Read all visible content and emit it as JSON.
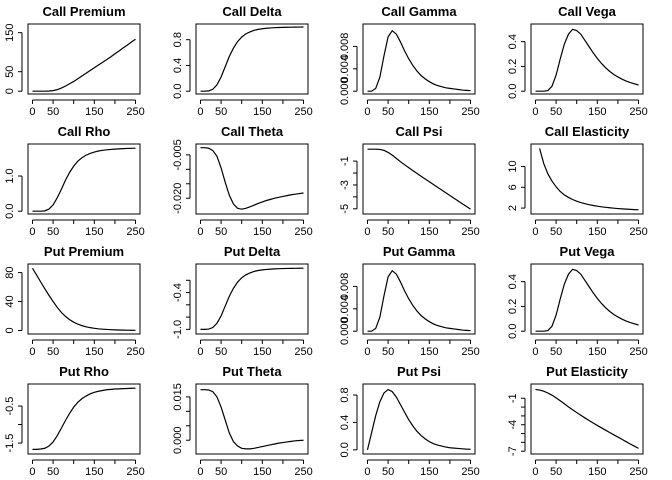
{
  "chart_data": [
    {
      "type": "line",
      "title": "Call Premium",
      "x": [
        0,
        10,
        20,
        30,
        40,
        50,
        60,
        70,
        80,
        90,
        100,
        110,
        120,
        130,
        140,
        150,
        160,
        170,
        180,
        190,
        200,
        210,
        220,
        230,
        240,
        250
      ],
      "y": [
        0,
        0,
        0,
        0,
        0.5,
        1.5,
        4,
        8,
        13,
        19,
        25,
        32,
        39,
        46,
        53,
        60,
        67,
        74,
        81,
        88,
        96,
        103,
        111,
        118,
        126,
        133
      ],
      "xlim": [
        0,
        250
      ],
      "ylim": [
        0,
        165
      ],
      "xticks": [
        0,
        50,
        150,
        250
      ],
      "xticklabels": [
        "0",
        "50",
        "150",
        "250"
      ],
      "yticks": [
        0,
        50,
        150
      ],
      "yticklabels": [
        "0",
        "50",
        "150"
      ]
    },
    {
      "type": "line",
      "title": "Call Delta",
      "x": [
        0,
        10,
        20,
        30,
        40,
        50,
        60,
        70,
        80,
        90,
        100,
        110,
        120,
        130,
        140,
        150,
        160,
        170,
        180,
        190,
        200,
        210,
        220,
        230,
        240,
        250
      ],
      "y": [
        0,
        0,
        0.005,
        0.03,
        0.1,
        0.22,
        0.38,
        0.54,
        0.67,
        0.77,
        0.84,
        0.89,
        0.92,
        0.945,
        0.96,
        0.97,
        0.977,
        0.982,
        0.986,
        0.989,
        0.991,
        0.993,
        0.994,
        0.995,
        0.996,
        0.997
      ],
      "xlim": [
        0,
        250
      ],
      "ylim": [
        0,
        1
      ],
      "xticks": [
        0,
        50,
        150,
        250
      ],
      "xticklabels": [
        "0",
        "50",
        "150",
        "250"
      ],
      "yticks": [
        0,
        0.4,
        0.8
      ],
      "yticklabels": [
        "0.0",
        "0.4",
        "0.8"
      ]
    },
    {
      "type": "line",
      "title": "Call Gamma",
      "x": [
        0,
        10,
        20,
        30,
        40,
        50,
        60,
        70,
        80,
        90,
        100,
        110,
        120,
        130,
        140,
        150,
        160,
        170,
        180,
        190,
        200,
        210,
        220,
        230,
        240,
        250
      ],
      "y": [
        0,
        0,
        0.0005,
        0.0025,
        0.0063,
        0.0097,
        0.0108,
        0.0102,
        0.0088,
        0.0072,
        0.0058,
        0.0046,
        0.0036,
        0.0028,
        0.0022,
        0.0017,
        0.0013,
        0.001,
        0.0008,
        0.0006,
        0.0005,
        0.0004,
        0.0003,
        0.0002,
        0.00015,
        0.0001
      ],
      "xlim": [
        0,
        250
      ],
      "ylim": [
        0,
        0.0115
      ],
      "xticks": [
        0,
        50,
        150,
        250
      ],
      "xticklabels": [
        "0",
        "50",
        "150",
        "250"
      ],
      "yticks": [
        0,
        0.004,
        0.008
      ],
      "yticklabels": [
        "0.000",
        "0.004",
        "0.008"
      ]
    },
    {
      "type": "line",
      "title": "Call Vega",
      "x": [
        0,
        10,
        20,
        30,
        40,
        50,
        60,
        70,
        80,
        90,
        100,
        110,
        120,
        130,
        140,
        150,
        160,
        170,
        180,
        190,
        200,
        210,
        220,
        230,
        240,
        250
      ],
      "y": [
        0,
        0,
        0,
        0.005,
        0.04,
        0.13,
        0.26,
        0.38,
        0.46,
        0.5,
        0.49,
        0.46,
        0.41,
        0.36,
        0.31,
        0.265,
        0.225,
        0.19,
        0.16,
        0.135,
        0.115,
        0.097,
        0.082,
        0.07,
        0.06,
        0.05
      ],
      "xlim": [
        0,
        250
      ],
      "ylim": [
        0,
        0.52
      ],
      "xticks": [
        0,
        50,
        150,
        250
      ],
      "xticklabels": [
        "0",
        "50",
        "150",
        "250"
      ],
      "yticks": [
        0,
        0.2,
        0.4
      ],
      "yticklabels": [
        "0.0",
        "0.2",
        "0.4"
      ]
    },
    {
      "type": "line",
      "title": "Call Rho",
      "x": [
        0,
        10,
        20,
        30,
        40,
        50,
        60,
        70,
        80,
        90,
        100,
        110,
        120,
        130,
        140,
        150,
        160,
        170,
        180,
        190,
        200,
        210,
        220,
        230,
        240,
        250
      ],
      "y": [
        0,
        0,
        0,
        0.01,
        0.06,
        0.18,
        0.38,
        0.62,
        0.88,
        1.1,
        1.28,
        1.42,
        1.52,
        1.59,
        1.64,
        1.68,
        1.71,
        1.73,
        1.745,
        1.755,
        1.765,
        1.772,
        1.778,
        1.783,
        1.787,
        1.79
      ],
      "xlim": [
        0,
        250
      ],
      "ylim": [
        0,
        1.83
      ],
      "xticks": [
        0,
        50,
        150,
        250
      ],
      "xticklabels": [
        "0",
        "50",
        "150",
        "250"
      ],
      "yticks": [
        0,
        1.0
      ],
      "yticklabels": [
        "0.0",
        "1.0"
      ]
    },
    {
      "type": "line",
      "title": "Call Theta",
      "x": [
        0,
        10,
        20,
        30,
        40,
        50,
        60,
        70,
        80,
        90,
        100,
        110,
        120,
        130,
        140,
        150,
        160,
        170,
        180,
        190,
        200,
        210,
        220,
        230,
        240,
        250
      ],
      "y": [
        -0.0025,
        -0.0025,
        -0.0027,
        -0.0035,
        -0.0055,
        -0.0095,
        -0.0145,
        -0.019,
        -0.022,
        -0.0235,
        -0.0238,
        -0.0235,
        -0.023,
        -0.0224,
        -0.0218,
        -0.0213,
        -0.0208,
        -0.0204,
        -0.02,
        -0.0197,
        -0.0194,
        -0.0191,
        -0.0188,
        -0.0186,
        -0.0184,
        -0.0182
      ],
      "xlim": [
        0,
        250
      ],
      "ylim": [
        -0.0245,
        -0.0022
      ],
      "xticks": [
        0,
        50,
        150,
        250
      ],
      "xticklabels": [
        "0",
        "50",
        "150",
        "250"
      ],
      "yticks": [
        -0.02,
        -0.015,
        -0.01,
        -0.005
      ],
      "yticklabels": [
        "-0.020",
        "",
        "",
        "-0.005"
      ]
    },
    {
      "type": "line",
      "title": "Call Psi",
      "x": [
        0,
        10,
        20,
        30,
        40,
        50,
        60,
        70,
        80,
        90,
        100,
        110,
        120,
        130,
        140,
        150,
        160,
        170,
        180,
        190,
        200,
        210,
        220,
        230,
        240,
        250
      ],
      "y": [
        0,
        0,
        0,
        -0.02,
        -0.1,
        -0.27,
        -0.5,
        -0.77,
        -1.05,
        -1.3,
        -1.55,
        -1.8,
        -2.03,
        -2.27,
        -2.5,
        -2.73,
        -2.96,
        -3.19,
        -3.42,
        -3.65,
        -3.88,
        -4.11,
        -4.34,
        -4.57,
        -4.8,
        -5.03
      ],
      "xlim": [
        0,
        250
      ],
      "ylim": [
        -5.2,
        0.2
      ],
      "xticks": [
        0,
        50,
        150,
        250
      ],
      "xticklabels": [
        "0",
        "50",
        "150",
        "250"
      ],
      "yticks": [
        -5,
        -4,
        -3,
        -2,
        -1
      ],
      "yticklabels": [
        "-5",
        "",
        "-3",
        "",
        "-1"
      ]
    },
    {
      "type": "line",
      "title": "Call Elasticity",
      "x": [
        10,
        20,
        30,
        40,
        50,
        60,
        70,
        80,
        90,
        100,
        110,
        120,
        130,
        140,
        150,
        160,
        170,
        180,
        190,
        200,
        210,
        220,
        230,
        240,
        250
      ],
      "y": [
        13.5,
        10.6,
        8.6,
        7.2,
        6.1,
        5.2,
        4.55,
        4.05,
        3.65,
        3.33,
        3.07,
        2.85,
        2.66,
        2.5,
        2.37,
        2.25,
        2.15,
        2.06,
        1.98,
        1.91,
        1.85,
        1.8,
        1.75,
        1.71,
        1.67
      ],
      "xlim": [
        0,
        250
      ],
      "ylim": [
        1.4,
        13.8
      ],
      "xticks": [
        0,
        50,
        150,
        250
      ],
      "xticklabels": [
        "0",
        "50",
        "150",
        "250"
      ],
      "yticks": [
        2,
        6,
        10
      ],
      "yticklabels": [
        "2",
        "6",
        "10"
      ]
    },
    {
      "type": "line",
      "title": "Put Premium",
      "x": [
        0,
        10,
        20,
        30,
        40,
        50,
        60,
        70,
        80,
        90,
        100,
        110,
        120,
        130,
        140,
        150,
        160,
        170,
        180,
        190,
        200,
        210,
        220,
        230,
        240,
        250
      ],
      "y": [
        86,
        76.5,
        67,
        57.5,
        48.5,
        40,
        32,
        25,
        19.5,
        15,
        11.5,
        8.8,
        6.7,
        5.1,
        3.9,
        3,
        2.3,
        1.8,
        1.4,
        1.1,
        0.85,
        0.65,
        0.5,
        0.4,
        0.3,
        0.25
      ],
      "xlim": [
        0,
        250
      ],
      "ylim": [
        -1,
        88
      ],
      "xticks": [
        0,
        50,
        150,
        250
      ],
      "xticklabels": [
        "0",
        "50",
        "150",
        "250"
      ],
      "yticks": [
        0,
        40,
        80
      ],
      "yticklabels": [
        "0",
        "40",
        "80"
      ]
    },
    {
      "type": "line",
      "title": "Put Delta",
      "x": [
        0,
        10,
        20,
        30,
        40,
        50,
        60,
        70,
        80,
        90,
        100,
        110,
        120,
        130,
        140,
        150,
        160,
        170,
        180,
        190,
        200,
        210,
        220,
        230,
        240,
        250
      ],
      "y": [
        -1,
        -1,
        -0.995,
        -0.97,
        -0.9,
        -0.78,
        -0.62,
        -0.46,
        -0.33,
        -0.23,
        -0.16,
        -0.11,
        -0.08,
        -0.055,
        -0.04,
        -0.03,
        -0.023,
        -0.018,
        -0.014,
        -0.011,
        -0.009,
        -0.007,
        -0.006,
        -0.005,
        -0.004,
        -0.003
      ],
      "xlim": [
        0,
        250
      ],
      "ylim": [
        -1.03,
        0.02
      ],
      "xticks": [
        0,
        50,
        150,
        250
      ],
      "xticklabels": [
        "0",
        "50",
        "150",
        "250"
      ],
      "yticks": [
        -1.0,
        -0.8,
        -0.6,
        -0.4,
        -0.2
      ],
      "yticklabels": [
        "-1.0",
        "",
        "",
        "-0.4",
        ""
      ]
    },
    {
      "type": "line",
      "title": "Put Gamma",
      "x": [
        0,
        10,
        20,
        30,
        40,
        50,
        60,
        70,
        80,
        90,
        100,
        110,
        120,
        130,
        140,
        150,
        160,
        170,
        180,
        190,
        200,
        210,
        220,
        230,
        240,
        250
      ],
      "y": [
        0,
        0,
        0.0005,
        0.0025,
        0.0063,
        0.0097,
        0.0108,
        0.0102,
        0.0088,
        0.0072,
        0.0058,
        0.0046,
        0.0036,
        0.0028,
        0.0022,
        0.0017,
        0.0013,
        0.001,
        0.0008,
        0.0006,
        0.0005,
        0.0004,
        0.0003,
        0.0002,
        0.00015,
        0.0001
      ],
      "xlim": [
        0,
        250
      ],
      "ylim": [
        0,
        0.0115
      ],
      "xticks": [
        0,
        50,
        150,
        250
      ],
      "xticklabels": [
        "0",
        "50",
        "150",
        "250"
      ],
      "yticks": [
        0,
        0.004,
        0.008
      ],
      "yticklabels": [
        "0.000",
        "0.004",
        "0.008"
      ]
    },
    {
      "type": "line",
      "title": "Put Vega",
      "x": [
        0,
        10,
        20,
        30,
        40,
        50,
        60,
        70,
        80,
        90,
        100,
        110,
        120,
        130,
        140,
        150,
        160,
        170,
        180,
        190,
        200,
        210,
        220,
        230,
        240,
        250
      ],
      "y": [
        0,
        0,
        0,
        0.005,
        0.04,
        0.13,
        0.26,
        0.38,
        0.46,
        0.5,
        0.49,
        0.46,
        0.41,
        0.36,
        0.31,
        0.265,
        0.225,
        0.19,
        0.16,
        0.135,
        0.115,
        0.097,
        0.082,
        0.07,
        0.06,
        0.05
      ],
      "xlim": [
        0,
        250
      ],
      "ylim": [
        0,
        0.52
      ],
      "xticks": [
        0,
        50,
        150,
        250
      ],
      "xticklabels": [
        "0",
        "50",
        "150",
        "250"
      ],
      "yticks": [
        0,
        0.2,
        0.4
      ],
      "yticklabels": [
        "0.0",
        "0.2",
        "0.4"
      ]
    },
    {
      "type": "line",
      "title": "Put Rho",
      "x": [
        0,
        10,
        20,
        30,
        40,
        50,
        60,
        70,
        80,
        90,
        100,
        110,
        120,
        130,
        140,
        150,
        160,
        170,
        180,
        190,
        200,
        210,
        220,
        230,
        240,
        250
      ],
      "y": [
        -1.67,
        -1.67,
        -1.66,
        -1.64,
        -1.58,
        -1.47,
        -1.3,
        -1.1,
        -0.89,
        -0.7,
        -0.53,
        -0.4,
        -0.3,
        -0.23,
        -0.17,
        -0.13,
        -0.1,
        -0.08,
        -0.06,
        -0.05,
        -0.04,
        -0.035,
        -0.03,
        -0.025,
        -0.02,
        -0.018
      ],
      "xlim": [
        0,
        250
      ],
      "ylim": [
        -1.72,
        0.02
      ],
      "xticks": [
        0,
        50,
        150,
        250
      ],
      "xticklabels": [
        "0",
        "50",
        "150",
        "250"
      ],
      "yticks": [
        -1.5,
        -1.0,
        -0.5
      ],
      "yticklabels": [
        "-1.5",
        "",
        "-0.5"
      ]
    },
    {
      "type": "line",
      "title": "Put Theta",
      "x": [
        0,
        10,
        20,
        30,
        40,
        50,
        60,
        70,
        80,
        90,
        100,
        110,
        120,
        130,
        140,
        150,
        160,
        170,
        180,
        190,
        200,
        210,
        220,
        230,
        240,
        250
      ],
      "y": [
        0.0175,
        0.0175,
        0.0174,
        0.0168,
        0.015,
        0.0115,
        0.007,
        0.0025,
        -0.0005,
        -0.002,
        -0.0028,
        -0.003,
        -0.003,
        -0.0028,
        -0.0025,
        -0.0022,
        -0.0019,
        -0.0016,
        -0.0013,
        -0.001,
        -0.0008,
        -0.0006,
        -0.0004,
        -0.0002,
        -0.0001,
        0
      ],
      "xlim": [
        0,
        250
      ],
      "ylim": [
        -0.0038,
        0.0185
      ],
      "xticks": [
        0,
        50,
        150,
        250
      ],
      "xticklabels": [
        "0",
        "50",
        "150",
        "250"
      ],
      "yticks": [
        0,
        0.005,
        0.01,
        0.015
      ],
      "yticklabels": [
        "0.000",
        "",
        "",
        "0.015"
      ]
    },
    {
      "type": "line",
      "title": "Put Psi",
      "x": [
        0,
        10,
        20,
        30,
        40,
        50,
        60,
        70,
        80,
        90,
        100,
        110,
        120,
        130,
        140,
        150,
        160,
        170,
        180,
        190,
        200,
        210,
        220,
        230,
        240,
        250
      ],
      "y": [
        0,
        0.25,
        0.5,
        0.7,
        0.83,
        0.88,
        0.85,
        0.77,
        0.66,
        0.55,
        0.44,
        0.35,
        0.27,
        0.21,
        0.16,
        0.12,
        0.09,
        0.07,
        0.055,
        0.04,
        0.03,
        0.025,
        0.02,
        0.015,
        0.01,
        0.008
      ],
      "xlim": [
        0,
        250
      ],
      "ylim": [
        -0.02,
        0.92
      ],
      "xticks": [
        0,
        50,
        150,
        250
      ],
      "xticklabels": [
        "0",
        "50",
        "150",
        "250"
      ],
      "yticks": [
        0,
        0.4,
        0.8
      ],
      "yticklabels": [
        "0.0",
        "0.4",
        "0.8"
      ]
    },
    {
      "type": "line",
      "title": "Put Elasticity",
      "x": [
        0,
        10,
        20,
        30,
        40,
        50,
        60,
        70,
        80,
        90,
        100,
        110,
        120,
        130,
        140,
        150,
        160,
        170,
        180,
        190,
        200,
        210,
        220,
        230,
        240,
        250
      ],
      "y": [
        0,
        -0.07,
        -0.2,
        -0.4,
        -0.65,
        -0.95,
        -1.28,
        -1.62,
        -1.97,
        -2.3,
        -2.62,
        -2.93,
        -3.23,
        -3.52,
        -3.8,
        -4.08,
        -4.35,
        -4.62,
        -4.88,
        -5.14,
        -5.4,
        -5.66,
        -5.92,
        -6.18,
        -6.43,
        -6.68
      ],
      "xlim": [
        0,
        250
      ],
      "ylim": [
        -7.0,
        0.3
      ],
      "xticks": [
        0,
        50,
        150,
        250
      ],
      "xticklabels": [
        "0",
        "50",
        "150",
        "250"
      ],
      "yticks": [
        -7,
        -6,
        -5,
        -4,
        -3,
        -2,
        -1
      ],
      "yticklabels": [
        "-7",
        "",
        "",
        "-4",
        "",
        "",
        "-1"
      ]
    }
  ]
}
